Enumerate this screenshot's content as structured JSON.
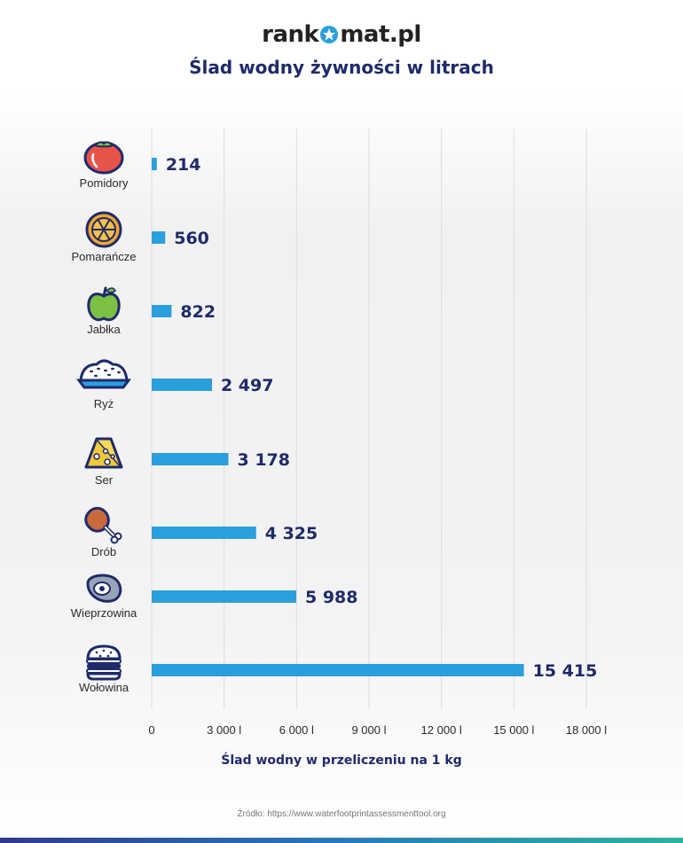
{
  "logo": {
    "left": "rank",
    "right": "mat.pl"
  },
  "title": "Ślad wodny żywności w litrach",
  "colors": {
    "bar": "#2a9fdc",
    "value": "#1f2a6b",
    "grid": "#dcdcdc"
  },
  "chart_data": {
    "type": "bar",
    "orientation": "horizontal",
    "categories": [
      "Pomidory",
      "Pomarańcze",
      "Jabłka",
      "Ryż",
      "Ser",
      "Drób",
      "Wieprzowina",
      "Wołowina"
    ],
    "values": [
      214,
      560,
      822,
      2497,
      3178,
      4325,
      5988,
      15415
    ],
    "value_labels": [
      "214",
      "560",
      "822",
      "2 497",
      "3 178",
      "4 325",
      "5 988",
      "15 415"
    ],
    "icons": [
      "tomato-icon",
      "orange-icon",
      "apple-icon",
      "rice-icon",
      "cheese-icon",
      "chicken-leg-icon",
      "pork-icon",
      "burger-icon"
    ],
    "xlim": [
      0,
      18000
    ],
    "ticks": [
      0,
      3000,
      6000,
      9000,
      12000,
      15000,
      18000
    ],
    "tick_labels": [
      "0",
      "3 000 l",
      "6 000 l",
      "9 000 l",
      "12 000 l",
      "15 000 l",
      "18 000 l"
    ],
    "xlabel": "Ślad wodny w przeliczeniu na 1 kg",
    "grid": true
  },
  "source": "Źródło: https://www.waterfootprintassessmenttool.org"
}
